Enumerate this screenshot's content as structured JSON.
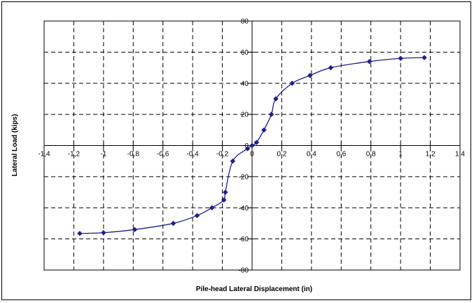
{
  "chart_data": {
    "type": "scatter",
    "title": "",
    "xlabel": "Pile-head Lateral Displacement (in)",
    "ylabel": "Lateral Load (kips)",
    "xlim": [
      -1.4,
      1.4
    ],
    "ylim": [
      -80,
      80
    ],
    "x_ticks": [
      -1.4,
      -1.2,
      -1,
      -0.8,
      -0.6,
      -0.4,
      -0.2,
      0,
      0.2,
      0.4,
      0.6,
      0.8,
      1,
      1.2,
      1.4
    ],
    "x_tick_labels": [
      "-1,4",
      "-1,2",
      "-1",
      "-0,8",
      "-0,6",
      "-0,4",
      "-0,2",
      "0",
      "0,2",
      "0,4",
      "0,6",
      "0,8",
      "1",
      "1,2",
      "1,4"
    ],
    "y_ticks": [
      -80,
      -60,
      -40,
      -20,
      0,
      20,
      40,
      60,
      80
    ],
    "y_tick_labels": [
      "-80",
      "-60",
      "-40",
      "-20",
      "0",
      "20",
      "40",
      "60",
      "80"
    ],
    "grid": true,
    "legend": "none",
    "series": [
      {
        "color": "#1f1f8c",
        "marker": "diamond",
        "smooth": true,
        "x": [
          -1.16,
          -1.0,
          -0.79,
          -0.53,
          -0.37,
          -0.27,
          -0.19,
          -0.18,
          -0.13,
          -0.03,
          0.0,
          0.03,
          0.08,
          0.13,
          0.16,
          0.27,
          0.39,
          0.53,
          0.79,
          1.0,
          1.16
        ],
        "y": [
          -56.5,
          -56,
          -54,
          -50,
          -45,
          -40,
          -35,
          -30,
          -10,
          -2,
          0,
          2,
          10,
          20,
          30,
          40,
          45,
          50,
          54,
          56,
          56.5
        ]
      }
    ]
  }
}
